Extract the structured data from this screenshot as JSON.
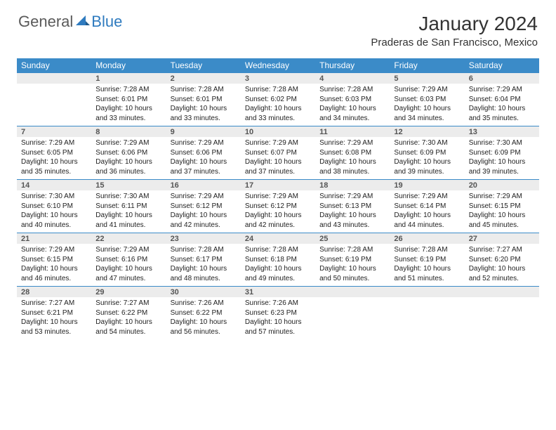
{
  "brand": {
    "general": "General",
    "blue": "Blue"
  },
  "title": "January 2024",
  "location": "Praderas de San Francisco, Mexico",
  "colors": {
    "header_bg": "#3b8bc8",
    "header_text": "#ffffff",
    "daynum_bg": "#ececec",
    "row_border": "#3b8bc8",
    "logo_gray": "#5a5a5a",
    "logo_blue": "#2f7bbf",
    "body_text": "#222222"
  },
  "weekdays": [
    "Sunday",
    "Monday",
    "Tuesday",
    "Wednesday",
    "Thursday",
    "Friday",
    "Saturday"
  ],
  "weeks": [
    [
      null,
      {
        "n": "1",
        "sr": "7:28 AM",
        "ss": "6:01 PM",
        "dl": "10 hours and 33 minutes."
      },
      {
        "n": "2",
        "sr": "7:28 AM",
        "ss": "6:01 PM",
        "dl": "10 hours and 33 minutes."
      },
      {
        "n": "3",
        "sr": "7:28 AM",
        "ss": "6:02 PM",
        "dl": "10 hours and 33 minutes."
      },
      {
        "n": "4",
        "sr": "7:28 AM",
        "ss": "6:03 PM",
        "dl": "10 hours and 34 minutes."
      },
      {
        "n": "5",
        "sr": "7:29 AM",
        "ss": "6:03 PM",
        "dl": "10 hours and 34 minutes."
      },
      {
        "n": "6",
        "sr": "7:29 AM",
        "ss": "6:04 PM",
        "dl": "10 hours and 35 minutes."
      }
    ],
    [
      {
        "n": "7",
        "sr": "7:29 AM",
        "ss": "6:05 PM",
        "dl": "10 hours and 35 minutes."
      },
      {
        "n": "8",
        "sr": "7:29 AM",
        "ss": "6:06 PM",
        "dl": "10 hours and 36 minutes."
      },
      {
        "n": "9",
        "sr": "7:29 AM",
        "ss": "6:06 PM",
        "dl": "10 hours and 37 minutes."
      },
      {
        "n": "10",
        "sr": "7:29 AM",
        "ss": "6:07 PM",
        "dl": "10 hours and 37 minutes."
      },
      {
        "n": "11",
        "sr": "7:29 AM",
        "ss": "6:08 PM",
        "dl": "10 hours and 38 minutes."
      },
      {
        "n": "12",
        "sr": "7:30 AM",
        "ss": "6:09 PM",
        "dl": "10 hours and 39 minutes."
      },
      {
        "n": "13",
        "sr": "7:30 AM",
        "ss": "6:09 PM",
        "dl": "10 hours and 39 minutes."
      }
    ],
    [
      {
        "n": "14",
        "sr": "7:30 AM",
        "ss": "6:10 PM",
        "dl": "10 hours and 40 minutes."
      },
      {
        "n": "15",
        "sr": "7:30 AM",
        "ss": "6:11 PM",
        "dl": "10 hours and 41 minutes."
      },
      {
        "n": "16",
        "sr": "7:29 AM",
        "ss": "6:12 PM",
        "dl": "10 hours and 42 minutes."
      },
      {
        "n": "17",
        "sr": "7:29 AM",
        "ss": "6:12 PM",
        "dl": "10 hours and 42 minutes."
      },
      {
        "n": "18",
        "sr": "7:29 AM",
        "ss": "6:13 PM",
        "dl": "10 hours and 43 minutes."
      },
      {
        "n": "19",
        "sr": "7:29 AM",
        "ss": "6:14 PM",
        "dl": "10 hours and 44 minutes."
      },
      {
        "n": "20",
        "sr": "7:29 AM",
        "ss": "6:15 PM",
        "dl": "10 hours and 45 minutes."
      }
    ],
    [
      {
        "n": "21",
        "sr": "7:29 AM",
        "ss": "6:15 PM",
        "dl": "10 hours and 46 minutes."
      },
      {
        "n": "22",
        "sr": "7:29 AM",
        "ss": "6:16 PM",
        "dl": "10 hours and 47 minutes."
      },
      {
        "n": "23",
        "sr": "7:28 AM",
        "ss": "6:17 PM",
        "dl": "10 hours and 48 minutes."
      },
      {
        "n": "24",
        "sr": "7:28 AM",
        "ss": "6:18 PM",
        "dl": "10 hours and 49 minutes."
      },
      {
        "n": "25",
        "sr": "7:28 AM",
        "ss": "6:19 PM",
        "dl": "10 hours and 50 minutes."
      },
      {
        "n": "26",
        "sr": "7:28 AM",
        "ss": "6:19 PM",
        "dl": "10 hours and 51 minutes."
      },
      {
        "n": "27",
        "sr": "7:27 AM",
        "ss": "6:20 PM",
        "dl": "10 hours and 52 minutes."
      }
    ],
    [
      {
        "n": "28",
        "sr": "7:27 AM",
        "ss": "6:21 PM",
        "dl": "10 hours and 53 minutes."
      },
      {
        "n": "29",
        "sr": "7:27 AM",
        "ss": "6:22 PM",
        "dl": "10 hours and 54 minutes."
      },
      {
        "n": "30",
        "sr": "7:26 AM",
        "ss": "6:22 PM",
        "dl": "10 hours and 56 minutes."
      },
      {
        "n": "31",
        "sr": "7:26 AM",
        "ss": "6:23 PM",
        "dl": "10 hours and 57 minutes."
      },
      null,
      null,
      null
    ]
  ],
  "labels": {
    "sunrise": "Sunrise:",
    "sunset": "Sunset:",
    "daylight": "Daylight:"
  }
}
